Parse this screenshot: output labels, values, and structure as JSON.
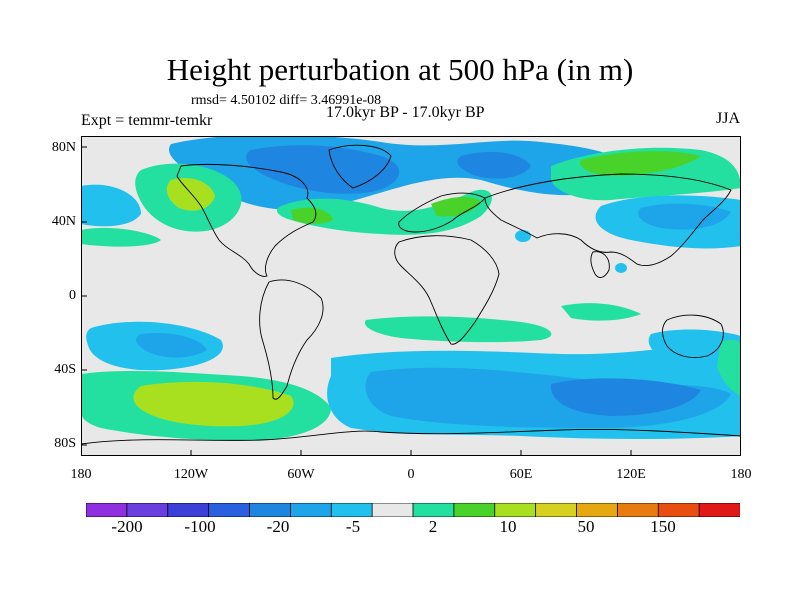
{
  "header": {
    "title": "Height perturbation at 500 hPa (in m)",
    "stats": "rmsd= 4.50102 diff= 3.46991e-08",
    "period": "17.0kyr BP - 17.0kyr BP",
    "experiment": "Expt = temmr-temkr",
    "season": "JJA"
  },
  "axes": {
    "lat_labels": [
      "80N",
      "40N",
      "0",
      "40S",
      "80S"
    ],
    "lon_labels": [
      "180",
      "120W",
      "60W",
      "0",
      "60E",
      "120E",
      "180"
    ]
  },
  "colorbar": {
    "colors": [
      "#8f2fdf",
      "#6a3fe0",
      "#3c3fd8",
      "#2a5fe0",
      "#1e86e0",
      "#1ea4e8",
      "#22c0ec",
      "#e8e8e8",
      "#24e0a0",
      "#48d22a",
      "#a8e020",
      "#d6d020",
      "#e6a810",
      "#e87a10",
      "#e84e10",
      "#e01818"
    ],
    "labels": [
      "-200",
      "-100",
      "-20",
      "-5",
      "2",
      "10",
      "50",
      "150"
    ]
  },
  "palette": {
    "neutral": "#e8e8e8",
    "light_blue": "#22c0ec",
    "mid_blue": "#1ea4e8",
    "blue": "#1e86e0",
    "teal_green": "#24e0a0",
    "green": "#48d22a",
    "yellow_green": "#a8e020",
    "coast": "#000000"
  }
}
